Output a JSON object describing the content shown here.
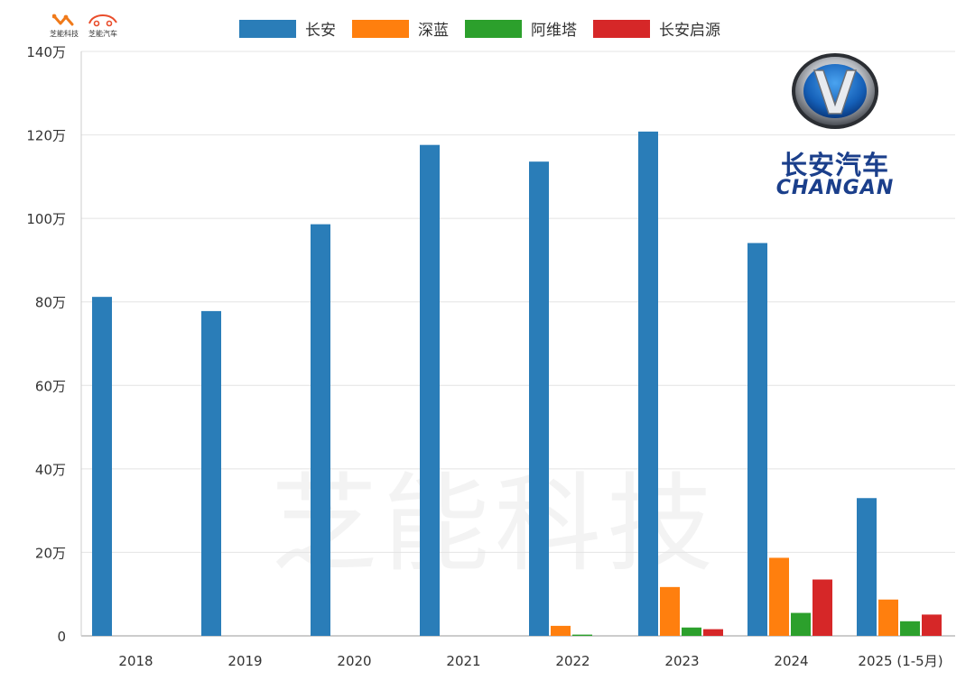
{
  "brand": {
    "left_label": "芝能科技",
    "right_label": "芝能汽车"
  },
  "logo": {
    "cn": "长安汽车",
    "en": "CHANGAN"
  },
  "watermark": "芝能科技",
  "colors": {
    "长安": "#2a7db8",
    "深蓝": "#ff7f0e",
    "阿维塔": "#2ca02c",
    "长安启源": "#d62728",
    "grid": "#e4e4e4",
    "axis_text": "#333333"
  },
  "chart_data": {
    "type": "bar",
    "categories": [
      "2018",
      "2019",
      "2020",
      "2021",
      "2022",
      "2023",
      "2024",
      "2025 (1-5月)"
    ],
    "series": [
      {
        "name": "长安",
        "values": [
          81.2,
          77.8,
          98.6,
          117.6,
          113.6,
          120.8,
          94.1,
          33.0
        ]
      },
      {
        "name": "深蓝",
        "values": [
          0,
          0,
          0,
          0,
          2.4,
          11.7,
          18.7,
          8.7
        ]
      },
      {
        "name": "阿维塔",
        "values": [
          0,
          0,
          0,
          0,
          0.3,
          2.0,
          5.5,
          3.5
        ]
      },
      {
        "name": "长安启源",
        "values": [
          0,
          0,
          0,
          0,
          0,
          1.6,
          13.5,
          5.1
        ]
      }
    ],
    "ylim": [
      0,
      140
    ],
    "yticks": [
      0,
      20,
      40,
      60,
      80,
      100,
      120,
      140
    ],
    "ytick_labels": [
      "0",
      "20万",
      "40万",
      "60万",
      "80万",
      "100万",
      "120万",
      "140万"
    ],
    "legend_position": "top",
    "grid": true
  }
}
